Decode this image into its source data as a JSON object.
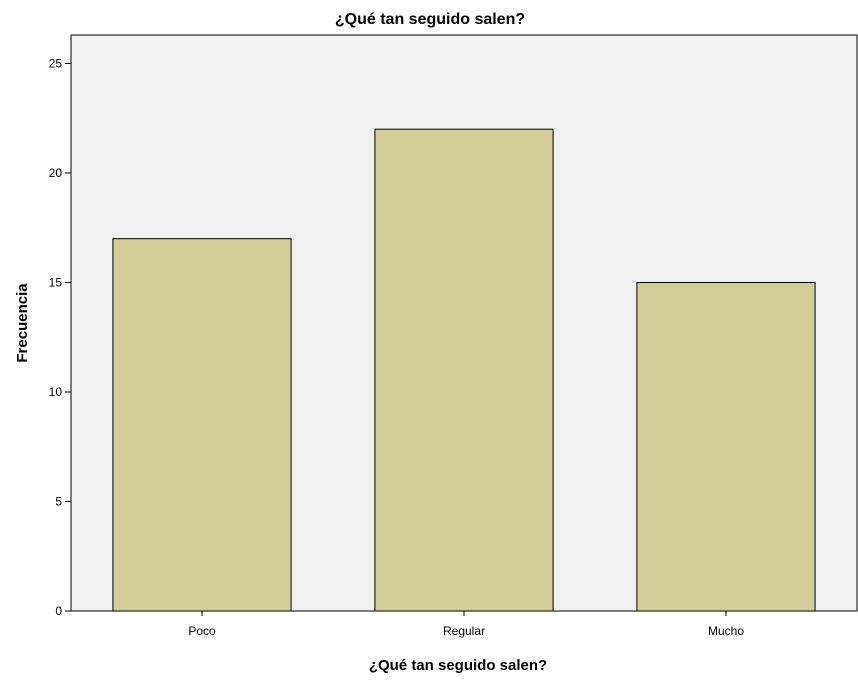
{
  "chart_data": {
    "type": "bar",
    "title": "¿Qué tan seguido salen?",
    "xlabel": "¿Qué tan seguido salen?",
    "ylabel": "Frecuencia",
    "categories": [
      "Poco",
      "Regular",
      "Mucho"
    ],
    "values": [
      17,
      22,
      15
    ],
    "ylim": [
      0,
      26.3
    ],
    "yticks": [
      0,
      5,
      10,
      15,
      20,
      25
    ],
    "grid": false,
    "legend": "none"
  },
  "colors": {
    "plot_background": "#f0f0f0",
    "bar_fill": "#d3ce97",
    "bar_stroke": "#000000",
    "axis": "#000000"
  }
}
